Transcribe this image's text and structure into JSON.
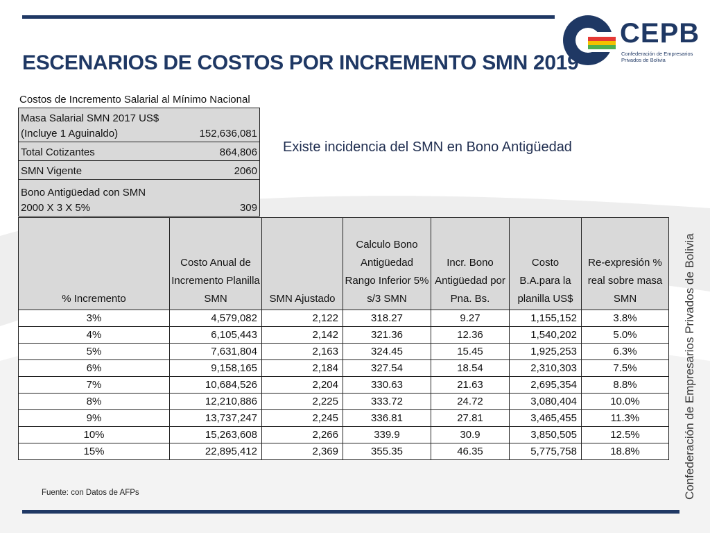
{
  "title": "ESCENARIOS DE COSTOS POR INCREMENTO SMN 2019",
  "logo": {
    "name": "CEPB",
    "sub_line1": "Confederación de Empresarios",
    "sub_line2": "Privados de Bolivia"
  },
  "side_text": "Confederación de Empresarios Privados de Bolivia",
  "note": "Existe incidencia del SMN en Bono Antigüedad",
  "source": "Fuente: con Datos de AFPs",
  "info": {
    "caption": "Costos de Incremento Salarial al Mínimo Nacional",
    "masa_label_1": "Masa  Salarial SMN 2017 US$",
    "masa_label_2": "(Incluye 1 Aguinaldo)",
    "masa_value": "152,636,081",
    "cotizantes_label": "Total Cotizantes",
    "cotizantes_value": "864,806",
    "smn_label": "SMN Vigente",
    "smn_value": "2060",
    "bono_label_1": "Bono Antigüedad con SMN",
    "bono_label_2": "2000 X 3 X 5%",
    "bono_value": "309"
  },
  "table": {
    "headers": [
      "% Incremento",
      "Costo Anual de Incremento Planilla SMN",
      "SMN Ajustado",
      "Calculo Bono Antigüedad Rango Inferior 5% s/3 SMN",
      "Incr. Bono Antigüedad por Pna. Bs.",
      "Costo B.A.para la planilla US$",
      "Re-expresión % real sobre masa SMN"
    ],
    "rows": [
      [
        "3%",
        "4,579,082",
        "2,122",
        "318.27",
        "9.27",
        "1,155,152",
        "3.8%"
      ],
      [
        "4%",
        "6,105,443",
        "2,142",
        "321.36",
        "12.36",
        "1,540,202",
        "5.0%"
      ],
      [
        "5%",
        "7,631,804",
        "2,163",
        "324.45",
        "15.45",
        "1,925,253",
        "6.3%"
      ],
      [
        "6%",
        "9,158,165",
        "2,184",
        "327.54",
        "18.54",
        "2,310,303",
        "7.5%"
      ],
      [
        "7%",
        "10,684,526",
        "2,204",
        "330.63",
        "21.63",
        "2,695,354",
        "8.8%"
      ],
      [
        "8%",
        "12,210,886",
        "2,225",
        "333.72",
        "24.72",
        "3,080,404",
        "10.0%"
      ],
      [
        "9%",
        "13,737,247",
        "2,245",
        "336.81",
        "27.81",
        "3,465,455",
        "11.3%"
      ],
      [
        "10%",
        "15,263,608",
        "2,266",
        "339.9",
        "30.9",
        "3,850,505",
        "12.5%"
      ],
      [
        "15%",
        "22,895,412",
        "2,369",
        "355.35",
        "46.35",
        "5,775,758",
        "18.8%"
      ]
    ]
  },
  "colors": {
    "navy": "#1f3864",
    "header_gray": "#d9d9d9",
    "logo_green": "#4caf50",
    "logo_yellow": "#f2c100",
    "logo_red": "#e53935"
  }
}
